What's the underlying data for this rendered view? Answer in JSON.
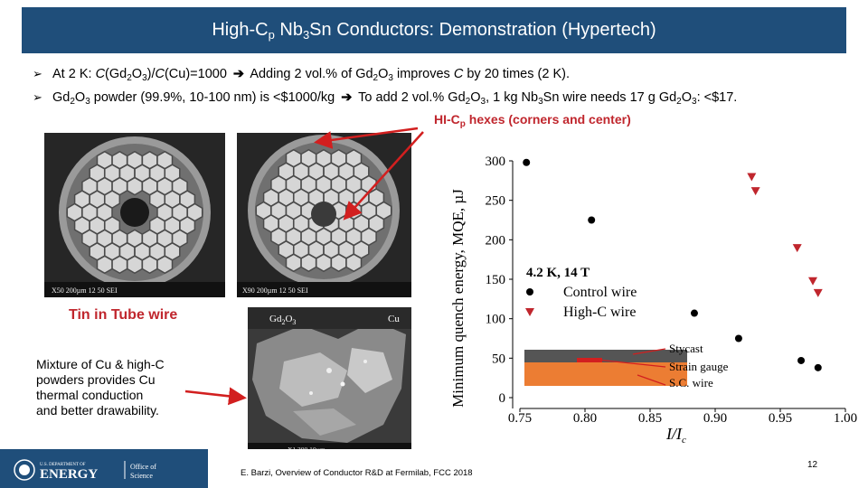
{
  "slide": {
    "title_pre": "High-C",
    "title_sub": "p",
    "title_mid": " Nb",
    "title_sub2": "3",
    "title_post": "Sn Conductors: Demonstration (Hypertech)",
    "bullet1": {
      "a": "At 2 K: ",
      "b": "C",
      "c": "(Gd",
      "d": "2",
      "e": "O",
      "f": "3",
      "g": ")/",
      "h": "C",
      "i": "(Cu)=1000",
      "j": "Adding 2 vol.% of Gd",
      "k": "2",
      "l": "O",
      "m": "3",
      "n": " improves ",
      "o": "C",
      "p": " by 20 times (2 K)."
    },
    "bullet2": {
      "a": "Gd",
      "b": "2",
      "c": "O",
      "d": "3",
      "e": " powder (99.9%, 10-100 nm) is <$1000/kg",
      "f": "To add 2 vol.% Gd",
      "g": "2",
      "h": "O",
      "i": "3",
      "j": ", 1 kg Nb",
      "k": "3",
      "l": "Sn wire needs 17 g Gd",
      "m": "2",
      "n": "O",
      "o": "3",
      "p": ": <$17."
    },
    "hex_label_pre": "HI-C",
    "hex_label_sub": "p",
    "hex_label_post": " hexes (corners and center)",
    "tin_label": "Tin in Tube wire",
    "sem1_caption": "X50  200µm     12 50 SEI",
    "sem2_caption": "X90  200µm     12 50 SEI",
    "sem3_gd": "Gd",
    "sem3_gd_sub": "2",
    "sem3_o": "O",
    "sem3_o_sub": "3",
    "sem3_cu": "Cu",
    "sem3_caption": "X1,300  10µm",
    "mixture_lines": [
      "Mixture of Cu & high-C",
      "powders provides Cu",
      "thermal conduction",
      "and better drawability."
    ],
    "citation": "E. Barzi, Overview of Conductor R&D at Fermilab, FCC 2018",
    "page_number": "12",
    "logo_text_1": "U.S. DEPARTMENT OF",
    "logo_text_2": "ENERGY",
    "logo_office_1": "Office of",
    "logo_office_2": "Science",
    "mixture_c": "C"
  },
  "chart_data": {
    "type": "scatter",
    "title": "",
    "xlabel": "I/I_c",
    "ylabel": "Minimum quench energy, MQE, µJ",
    "xlim": [
      0.75,
      1.0
    ],
    "ylim": [
      0,
      300
    ],
    "x_ticks": [
      "0.75",
      "0.80",
      "0.85",
      "0.90",
      "0.95",
      "1.00"
    ],
    "y_ticks": [
      "0",
      "50",
      "100",
      "150",
      "200",
      "250",
      "300"
    ],
    "legend_header": "4.2 K, 14 T",
    "series": [
      {
        "name": "Control wire",
        "marker": "circle",
        "color": "#000000",
        "x": [
          0.755,
          0.805,
          0.884,
          0.918,
          0.966,
          0.979
        ],
        "y": [
          298,
          225,
          107,
          75,
          47,
          38
        ]
      },
      {
        "name": "High-C wire",
        "marker": "triangle-down",
        "color": "#c0262d",
        "x": [
          0.928,
          0.931,
          0.963,
          0.975,
          0.979
        ],
        "y": [
          280,
          262,
          190,
          148,
          133
        ]
      }
    ],
    "annotations": [
      "Stycast",
      "Strain gauge",
      "S.C. wire"
    ]
  }
}
